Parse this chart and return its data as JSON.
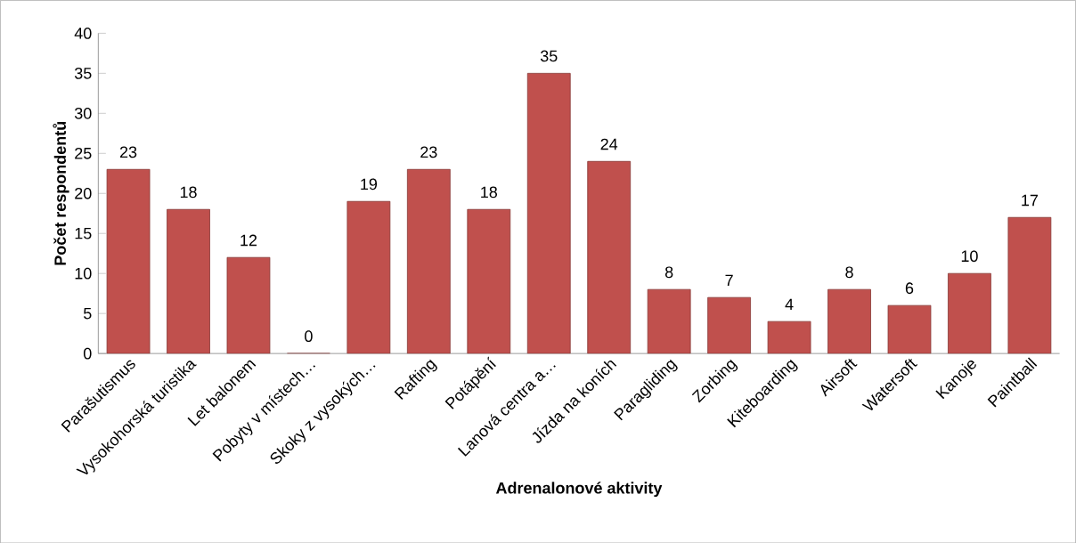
{
  "chart_data": {
    "type": "bar",
    "xlabel": "Adrenalonové aktivity",
    "ylabel": "Počet respondentů",
    "categories": [
      "Parašutismus",
      "Vysokohorská turistika",
      "Let balonem",
      "Pobyty v místech…",
      "Skoky z vysokých…",
      "Rafting",
      "Potápění",
      "Lanová centra a…",
      "Jízda na koních",
      "Paragliding",
      "Zorbing",
      "Kiteboarding",
      "Airsoft",
      "Watersoft",
      "Kanoje",
      "Paintball"
    ],
    "values": [
      23,
      18,
      12,
      0,
      19,
      23,
      18,
      35,
      24,
      8,
      7,
      4,
      8,
      6,
      10,
      17
    ],
    "color": "#c0504d",
    "ylim": [
      0,
      40
    ],
    "yticks": [
      0,
      5,
      10,
      15,
      20,
      25,
      30,
      35,
      40
    ],
    "data_labels": true,
    "grid": false
  }
}
